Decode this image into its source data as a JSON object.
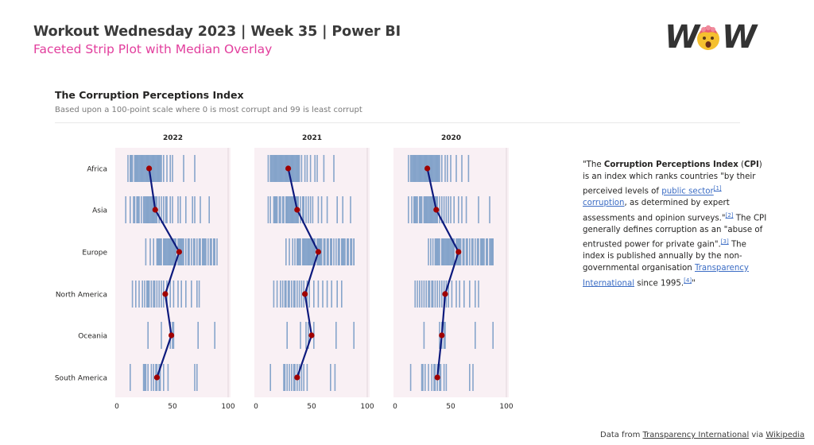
{
  "header": {
    "title": "Workout Wednesday 2023 | Week 35 | Power BI",
    "subtitle": "Faceted Strip Plot with Median Overlay",
    "logo_text_left": "W",
    "logo_text_right": "W"
  },
  "card": {
    "title": "The Corruption Perceptions Index",
    "subtitle": "Based upon a 100-point scale where 0 is most corrupt and 99 is least corrupt"
  },
  "colors": {
    "panel_bg": "#f9f0f4",
    "strip": "#7a9cc6",
    "median_line": "#0d1a7d",
    "median_point": "#a00000",
    "accent_pink": "#e23e9d",
    "logo_face": "#f5c02f"
  },
  "chart_data": {
    "type": "strip",
    "title": "The Corruption Perceptions Index",
    "xlim": [
      0,
      100
    ],
    "xticks": [
      "0",
      "50",
      "100"
    ],
    "categories": [
      "Africa",
      "Asia",
      "Europe",
      "North America",
      "Oceania",
      "South America"
    ],
    "facets": [
      {
        "year": "2022",
        "medians": [
          29,
          34.5,
          56,
          43.5,
          49,
          36
        ],
        "strips": [
          [
            10,
            12,
            13,
            14,
            16,
            17,
            18,
            19,
            20,
            21,
            22,
            23,
            24,
            25,
            26,
            27,
            28,
            29,
            30,
            31,
            32,
            33,
            34,
            35,
            36,
            37,
            38,
            39,
            40,
            42,
            45,
            48,
            50,
            60,
            70
          ],
          [
            8,
            12,
            15,
            16,
            18,
            19,
            20,
            22,
            24,
            25,
            26,
            27,
            28,
            29,
            30,
            31,
            32,
            33,
            34,
            35,
            36,
            38,
            40,
            42,
            44,
            45,
            48,
            50,
            55,
            57,
            62,
            68,
            70,
            75,
            83
          ],
          [
            26,
            30,
            33,
            36,
            37,
            38,
            39,
            40,
            42,
            43,
            44,
            45,
            46,
            47,
            48,
            49,
            50,
            51,
            52,
            53,
            55,
            56,
            57,
            58,
            59,
            60,
            62,
            64,
            65,
            67,
            69,
            70,
            72,
            74,
            75,
            77,
            78,
            79,
            80,
            82,
            84,
            85,
            87,
            88,
            90
          ],
          [
            14,
            17,
            20,
            23,
            25,
            27,
            28,
            29,
            31,
            33,
            34,
            36,
            38,
            40,
            42,
            45,
            48,
            51,
            55,
            58,
            62,
            67,
            72,
            74
          ],
          [
            28,
            40,
            48,
            50,
            51,
            73,
            88
          ],
          [
            12,
            24,
            25,
            26,
            28,
            31,
            33,
            35,
            36,
            38,
            39,
            42,
            46,
            70,
            72
          ]
        ]
      },
      {
        "year": "2021",
        "medians": [
          29,
          37,
          56,
          44,
          50,
          37
        ],
        "strips": [
          [
            11,
            13,
            14,
            15,
            16,
            17,
            18,
            19,
            20,
            21,
            22,
            23,
            24,
            25,
            26,
            27,
            28,
            29,
            30,
            31,
            32,
            33,
            34,
            35,
            36,
            37,
            38,
            39,
            41,
            44,
            46,
            49,
            53,
            55,
            61,
            70
          ],
          [
            11,
            13,
            16,
            17,
            18,
            19,
            21,
            22,
            24,
            25,
            27,
            28,
            29,
            30,
            31,
            32,
            33,
            34,
            35,
            36,
            37,
            38,
            40,
            42,
            43,
            45,
            47,
            49,
            51,
            56,
            59,
            64,
            73,
            78,
            85
          ],
          [
            27,
            30,
            33,
            35,
            37,
            38,
            39,
            40,
            42,
            43,
            44,
            45,
            46,
            47,
            48,
            49,
            50,
            51,
            52,
            53,
            55,
            56,
            57,
            58,
            59,
            61,
            62,
            64,
            65,
            67,
            68,
            70,
            72,
            74,
            75,
            77,
            78,
            79,
            80,
            82,
            83,
            85,
            86,
            88,
            88
          ],
          [
            16,
            19,
            22,
            24,
            26,
            27,
            29,
            30,
            32,
            34,
            35,
            37,
            39,
            41,
            43,
            46,
            48,
            52,
            56,
            60,
            64,
            68,
            73,
            77
          ],
          [
            28,
            40,
            45,
            47,
            52,
            72,
            88
          ],
          [
            13,
            25,
            26,
            28,
            30,
            32,
            34,
            35,
            37,
            39,
            41,
            43,
            46,
            67,
            71
          ]
        ]
      },
      {
        "year": "2020",
        "medians": [
          29,
          37,
          57,
          45,
          42,
          38
        ],
        "strips": [
          [
            12,
            14,
            15,
            16,
            17,
            18,
            19,
            20,
            21,
            22,
            23,
            24,
            25,
            26,
            27,
            28,
            29,
            30,
            31,
            32,
            33,
            34,
            35,
            36,
            37,
            38,
            39,
            40,
            42,
            45,
            47,
            50,
            55,
            60,
            66
          ],
          [
            12,
            15,
            17,
            18,
            19,
            20,
            22,
            23,
            24,
            26,
            27,
            28,
            29,
            30,
            31,
            32,
            33,
            34,
            35,
            36,
            37,
            38,
            40,
            42,
            44,
            46,
            48,
            50,
            53,
            57,
            60,
            64,
            75,
            85
          ],
          [
            30,
            32,
            34,
            36,
            37,
            38,
            39,
            40,
            42,
            43,
            44,
            45,
            46,
            47,
            48,
            49,
            50,
            51,
            52,
            53,
            55,
            56,
            57,
            58,
            59,
            61,
            62,
            64,
            65,
            67,
            69,
            70,
            72,
            74,
            75,
            77,
            78,
            79,
            80,
            82,
            83,
            85,
            86,
            87,
            88
          ],
          [
            18,
            20,
            22,
            24,
            26,
            28,
            30,
            31,
            33,
            34,
            36,
            38,
            40,
            42,
            44,
            46,
            48,
            51,
            55,
            58,
            62,
            67,
            72,
            75
          ],
          [
            26,
            40,
            42,
            44,
            45,
            72,
            88
          ],
          [
            14,
            24,
            25,
            27,
            30,
            33,
            35,
            36,
            38,
            40,
            41,
            44,
            46,
            67,
            70
          ]
        ]
      }
    ]
  },
  "info": {
    "quote_open": "\"The ",
    "term": "Corruption Perceptions Index",
    "paren_open": " (",
    "abbr": "CPI",
    "p1": ") is an index which ranks countries \"by their perceived levels of ",
    "link1": "public sector",
    "ref1": "[1]",
    "space1": " ",
    "link2": "corruption",
    "p2": ", as determined by expert assessments and opinion surveys.\"",
    "ref2": "[2]",
    "p3": " The CPI generally defines corruption as an \"abuse of entrusted power for private gain\".",
    "ref3": "[3]",
    "p4": " The index is published annually by the non-governmental organisation ",
    "link3": "Transparency International",
    "p5": " since 1995.",
    "ref4": "[4]",
    "quote_close": "\""
  },
  "footer": {
    "prefix": "Data from ",
    "link1": "Transparency International",
    "via": " via ",
    "link2": "Wikipedia"
  }
}
